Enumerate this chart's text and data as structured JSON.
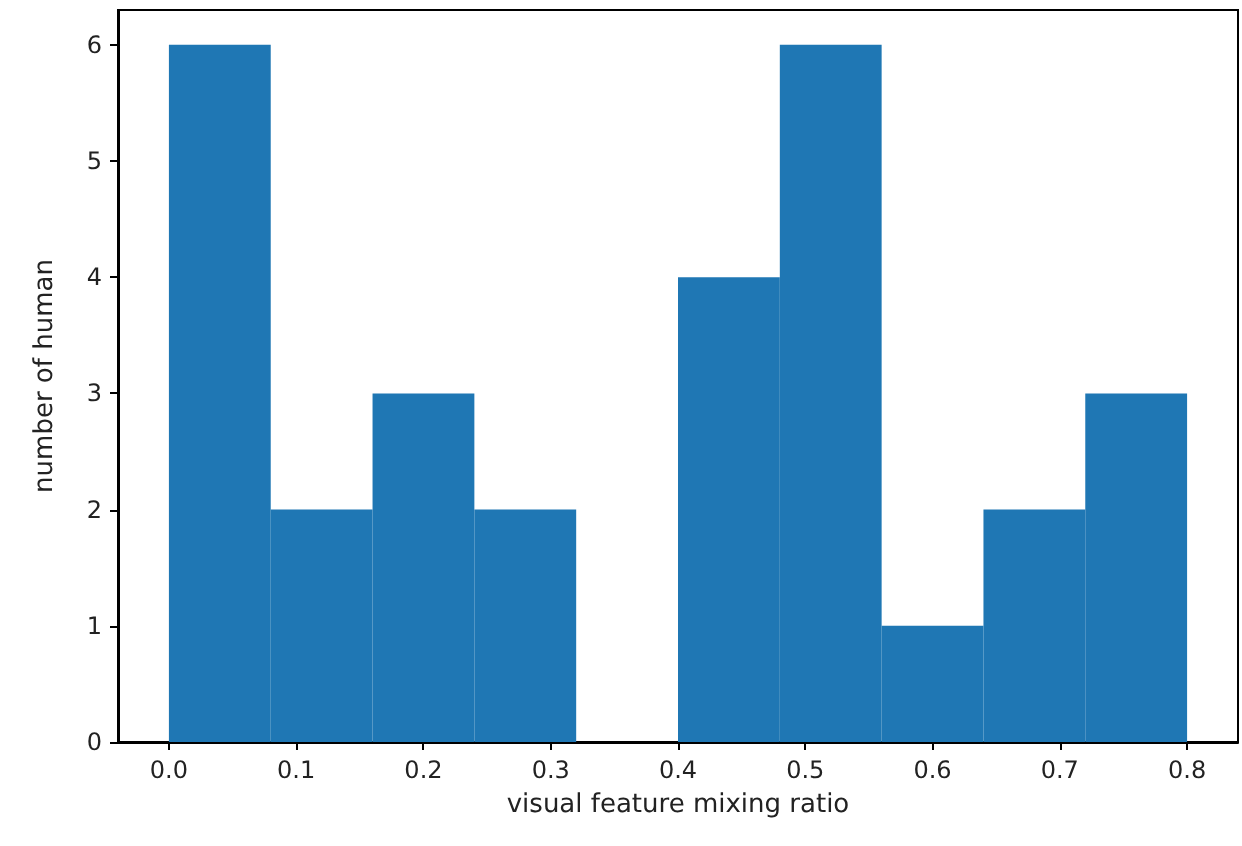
{
  "chart_data": {
    "type": "histogram",
    "xlabel": "visual feature mixing ratio",
    "ylabel": "number of human",
    "bins": [
      0,
      0.08,
      0.16,
      0.24,
      0.32,
      0.4,
      0.48,
      0.56,
      0.64,
      0.72,
      0.8
    ],
    "values": [
      6,
      2,
      3,
      2,
      0,
      4,
      6,
      1,
      2,
      3
    ],
    "color": "#1f77b4",
    "xlim": [
      -0.04,
      0.84
    ],
    "xticks": [
      {
        "value": 0,
        "label": "0.0"
      },
      {
        "value": 0.1,
        "label": "0.1"
      },
      {
        "value": 0.2,
        "label": "0.2"
      },
      {
        "value": 0.3,
        "label": "0.3"
      },
      {
        "value": 0.4,
        "label": "0.4"
      },
      {
        "value": 0.5,
        "label": "0.5"
      },
      {
        "value": 0.6,
        "label": "0.6"
      },
      {
        "value": 0.7,
        "label": "0.7"
      },
      {
        "value": 0.8,
        "label": "0.8"
      }
    ],
    "ylim": [
      0,
      6.3
    ],
    "yticks": [
      0,
      1,
      2,
      3,
      4,
      5,
      6
    ],
    "grid": false
  }
}
